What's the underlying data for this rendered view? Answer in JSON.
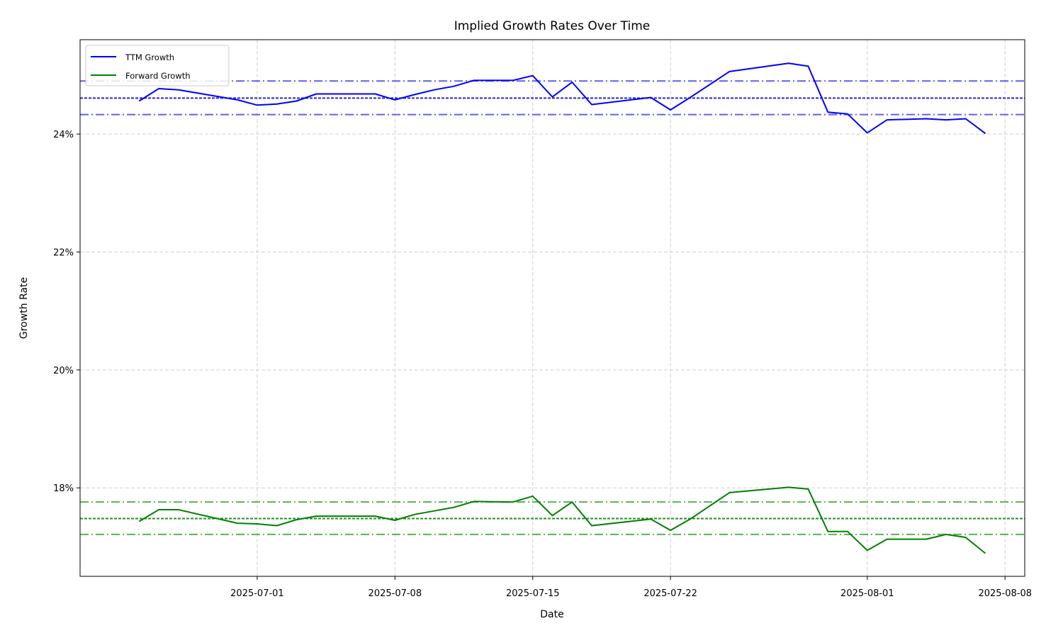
{
  "chart_data": {
    "type": "line",
    "title": "Implied Growth Rates Over Time",
    "xlabel": "Date",
    "ylabel": "Growth Rate",
    "xlim": [
      "2025-06-22",
      "2025-08-09"
    ],
    "ylim": [
      16.5,
      25.6
    ],
    "x_ticks": [
      "2025-07-01",
      "2025-07-08",
      "2025-07-15",
      "2025-07-22",
      "2025-08-01",
      "2025-08-08"
    ],
    "y_ticks": [
      18,
      20,
      22,
      24
    ],
    "y_tick_format": "percent",
    "grid": true,
    "legend_position": "upper-left",
    "x": [
      "2025-06-25",
      "2025-06-26",
      "2025-06-27",
      "2025-06-30",
      "2025-07-01",
      "2025-07-02",
      "2025-07-03",
      "2025-07-04",
      "2025-07-07",
      "2025-07-08",
      "2025-07-09",
      "2025-07-10",
      "2025-07-11",
      "2025-07-12",
      "2025-07-14",
      "2025-07-15",
      "2025-07-16",
      "2025-07-17",
      "2025-07-18",
      "2025-07-21",
      "2025-07-22",
      "2025-07-23",
      "2025-07-25",
      "2025-07-28",
      "2025-07-29",
      "2025-07-30",
      "2025-07-31",
      "2025-08-01",
      "2025-08-02",
      "2025-08-04",
      "2025-08-05",
      "2025-08-06",
      "2025-08-07"
    ],
    "series": [
      {
        "name": "TTM Growth",
        "color": "#0000ff",
        "values": [
          24.56,
          24.77,
          24.75,
          24.58,
          24.49,
          24.51,
          24.56,
          24.68,
          24.68,
          24.58,
          24.67,
          24.75,
          24.81,
          24.91,
          24.91,
          24.99,
          24.63,
          24.88,
          24.5,
          24.62,
          24.41,
          24.62,
          25.06,
          25.2,
          25.15,
          24.37,
          24.34,
          24.02,
          24.24,
          24.26,
          24.24,
          24.26,
          24.01
        ]
      },
      {
        "name": "Forward Growth",
        "color": "#008000",
        "values": [
          17.43,
          17.63,
          17.63,
          17.4,
          17.39,
          17.36,
          17.46,
          17.52,
          17.52,
          17.45,
          17.55,
          17.61,
          17.67,
          17.77,
          17.76,
          17.86,
          17.53,
          17.76,
          17.36,
          17.47,
          17.28,
          17.47,
          17.92,
          18.01,
          17.98,
          17.26,
          17.26,
          16.94,
          17.13,
          17.13,
          17.21,
          17.16,
          16.89
        ]
      }
    ],
    "reference_lines": [
      {
        "y": 24.9,
        "color": "#4444ee",
        "style": "dashdot"
      },
      {
        "y": 24.61,
        "color": "#0000cc",
        "style": "dotted"
      },
      {
        "y": 24.33,
        "color": "#4444ee",
        "style": "dashdot"
      },
      {
        "y": 17.76,
        "color": "#3fa33f",
        "style": "dashdot"
      },
      {
        "y": 17.48,
        "color": "#007a00",
        "style": "dotted"
      },
      {
        "y": 17.21,
        "color": "#3fa33f",
        "style": "dashdot"
      }
    ]
  }
}
